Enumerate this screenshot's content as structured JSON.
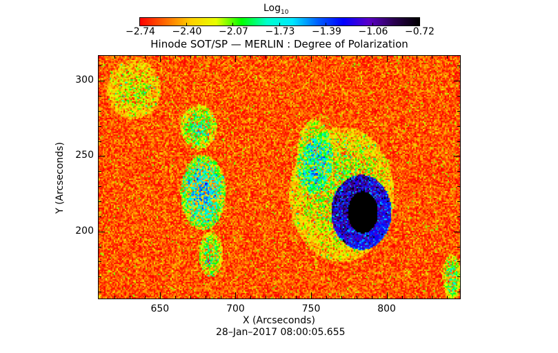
{
  "chart_data": {
    "type": "heatmap",
    "title": "Hinode SOT/SP — MERLIN : Degree of Polarization",
    "xlabel": "X (Arcseconds)",
    "ylabel": "Y (Arcseconds)",
    "xlim": [
      609,
      849
    ],
    "ylim": [
      155,
      317
    ],
    "xticks": [
      650,
      700,
      750,
      800
    ],
    "yticks": [
      200,
      250,
      300
    ],
    "colorbar": {
      "title": "Log",
      "title_sub": "10",
      "range": [
        -2.74,
        -0.72
      ],
      "tick_labels": [
        "−2.74",
        "−2.40",
        "−2.07",
        "−1.73",
        "−1.39",
        "−1.06",
        "−0.72"
      ],
      "colormap": [
        "#ff0000",
        "#ff6a00",
        "#ffd000",
        "#e8ff00",
        "#00ff00",
        "#00ffcc",
        "#00e8ff",
        "#0060ff",
        "#0000ff",
        "#5a00c8",
        "#2a0050",
        "#000000"
      ]
    },
    "background_level": -2.6,
    "features": [
      {
        "name": "sunspot",
        "x": 784,
        "y": 213,
        "rx": 10,
        "ry": 14,
        "value": -0.9
      },
      {
        "name": "penumbra",
        "x": 783,
        "y": 213,
        "rx": 20,
        "ry": 25,
        "value": -1.5
      },
      {
        "name": "plage-halo",
        "x": 770,
        "y": 225,
        "rx": 35,
        "ry": 45,
        "value": -2.05
      },
      {
        "name": "plage-left-1",
        "x": 678,
        "y": 226,
        "rx": 15,
        "ry": 25,
        "value": -1.6
      },
      {
        "name": "plage-left-2",
        "x": 675,
        "y": 270,
        "rx": 12,
        "ry": 15,
        "value": -1.9
      },
      {
        "name": "plage-left-3",
        "x": 683,
        "y": 185,
        "rx": 8,
        "ry": 15,
        "value": -1.9
      },
      {
        "name": "plage-left-4",
        "x": 632,
        "y": 295,
        "rx": 18,
        "ry": 20,
        "value": -2.15
      },
      {
        "name": "plage-mid",
        "x": 752,
        "y": 250,
        "rx": 12,
        "ry": 25,
        "value": -1.95
      },
      {
        "name": "plage-right-edge",
        "x": 843,
        "y": 170,
        "rx": 6,
        "ry": 15,
        "value": -1.9
      }
    ]
  },
  "footer": {
    "date": "28–Jan–2017 08:00:05.655"
  }
}
